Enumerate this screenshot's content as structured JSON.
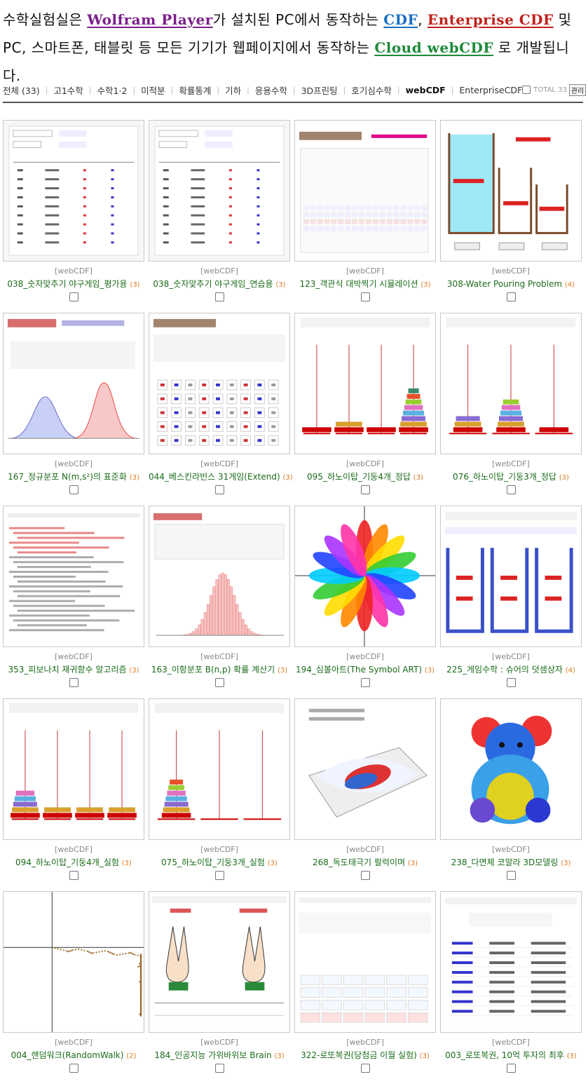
{
  "header": {
    "p1": "수학실험실은 ",
    "kw1": "Wolfram Player",
    "p2": "가 설치된 PC에서 동작하는 ",
    "kw2": "CDF",
    "p3": ", ",
    "kw3": "Enterprise CDF",
    "p4": " 및 PC, 스마트폰, 태블릿 등 모든 기기가 웹페이지에서 동작하는 ",
    "kw4": "Cloud webCDF",
    "p5": " 로 개발됩니다.",
    "colors": {
      "kw1": "#7b1f8a",
      "kw2": "#1a6fc0",
      "kw3": "#c0201a",
      "kw4": "#1e8a3a"
    }
  },
  "nav": {
    "items": [
      {
        "label": "전체 (33)"
      },
      {
        "label": "고1수학"
      },
      {
        "label": "수학1·2"
      },
      {
        "label": "미적분"
      },
      {
        "label": "확률통계"
      },
      {
        "label": "기하"
      },
      {
        "label": "응용수학"
      },
      {
        "label": "3D프린팅"
      },
      {
        "label": "호기심수학"
      },
      {
        "label": "webCDF",
        "active": true
      },
      {
        "label": "EnterpriseCDF"
      }
    ],
    "total": "TOTAL 33",
    "manage": "관리"
  },
  "cards": [
    {
      "tag": "[webCDF]",
      "title": "038_숫자맞추기 야구게임_평가용",
      "count": "(3)",
      "thumb": "table"
    },
    {
      "tag": "[webCDF]",
      "title": "038_숫자맞추기 야구게임_연습용",
      "count": "(3)",
      "thumb": "table"
    },
    {
      "tag": "[webCDF]",
      "title": "123_객관식 대박찍기 시뮬레이션",
      "count": "(3)",
      "thumb": "quiz"
    },
    {
      "tag": "[webCDF]",
      "title": "308-Water Pouring Problem",
      "count": "(4)",
      "thumb": "water"
    },
    {
      "tag": "[webCDF]",
      "title": "167_정규분포 N(m,s²)의 표준화",
      "count": "(3)",
      "thumb": "normal"
    },
    {
      "tag": "[webCDF]",
      "title": "044_베스킨라빈스 31게임(Extend)",
      "count": "(3)",
      "thumb": "numgrid"
    },
    {
      "tag": "[webCDF]",
      "title": "095_하노이탑_기둥4개_정답",
      "count": "(3)",
      "thumb": "hanoi4"
    },
    {
      "tag": "[webCDF]",
      "title": "076_하노이탑_기둥3개_정답",
      "count": "(3)",
      "thumb": "hanoi3"
    },
    {
      "tag": "[webCDF]",
      "title": "353_피보나치 재귀함수 알고리즘",
      "count": "(3)",
      "thumb": "fib"
    },
    {
      "tag": "[webCDF]",
      "title": "163_이항분포 B(n,p) 확률 계산기",
      "count": "(3)",
      "thumb": "binom"
    },
    {
      "tag": "[webCDF]",
      "title": "194_심볼아트(The Symbol ART)",
      "count": "(3)",
      "thumb": "symbol"
    },
    {
      "tag": "[webCDF]",
      "title": "225_게임수학 : 슈어의 덧셈상자",
      "count": "(4)",
      "thumb": "schur"
    },
    {
      "tag": "[webCDF]",
      "title": "094_하노이탑_기둥4개_실험",
      "count": "(3)",
      "thumb": "hanoi4b"
    },
    {
      "tag": "[webCDF]",
      "title": "075_하노이탑_기둥3개_실험",
      "count": "(3)",
      "thumb": "hanoi3b"
    },
    {
      "tag": "[webCDF]",
      "title": "268_독도태극기 펄럭이며",
      "count": "(3)",
      "thumb": "flag"
    },
    {
      "tag": "[webCDF]",
      "title": "238_다면체 코알라 3D모델링",
      "count": "(3)",
      "thumb": "koala"
    },
    {
      "tag": "[webCDF]",
      "title": "004_랜덤워크(RandomWalk)",
      "count": "(2)",
      "thumb": "walk"
    },
    {
      "tag": "[webCDF]",
      "title": "184_인공지능 가위바위보 Brain",
      "count": "(3)",
      "thumb": "rps"
    },
    {
      "tag": "[webCDF]",
      "title": "322-로또복권(당첨금 이월 실험)",
      "count": "(3)",
      "thumb": "lotto"
    },
    {
      "tag": "[webCDF]",
      "title": "003_로또복권, 10억 투자의 최후",
      "count": "(3)",
      "thumb": "lotto2"
    }
  ]
}
